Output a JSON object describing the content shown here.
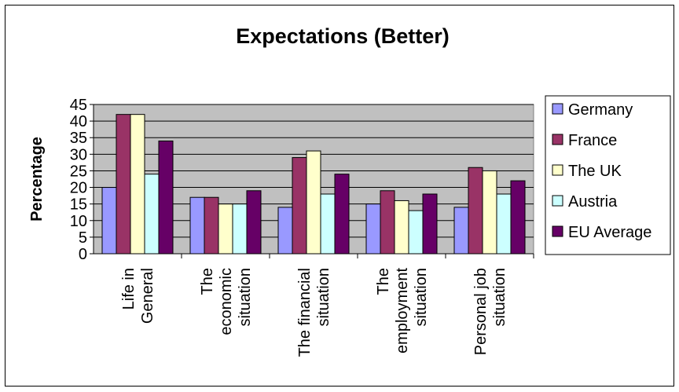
{
  "chart_data": {
    "type": "bar",
    "title": "Expectations (Better)",
    "ylabel": "Percentage",
    "xlabel": "",
    "ylim": [
      0,
      45
    ],
    "ytick_step": 5,
    "grid": true,
    "legend_position": "right",
    "categories": [
      [
        "Life in",
        "General"
      ],
      [
        "The",
        "economic",
        "situation"
      ],
      [
        "The financial",
        "situation"
      ],
      [
        "The",
        "employment",
        "situation"
      ],
      [
        "Personal job",
        "situation"
      ]
    ],
    "series": [
      {
        "name": "Germany",
        "color": "#9999ff",
        "values": [
          20,
          17,
          14,
          15,
          14
        ]
      },
      {
        "name": "France",
        "color": "#993366",
        "values": [
          42,
          17,
          29,
          19,
          26
        ]
      },
      {
        "name": "The UK",
        "color": "#ffffcc",
        "values": [
          42,
          15,
          31,
          16,
          25
        ]
      },
      {
        "name": "Austria",
        "color": "#ccffff",
        "values": [
          24,
          15,
          18,
          13,
          18
        ]
      },
      {
        "name": "EU Average",
        "color": "#660066",
        "values": [
          34,
          19,
          24,
          18,
          22
        ]
      }
    ],
    "plot_background": "#c0c0c0"
  }
}
